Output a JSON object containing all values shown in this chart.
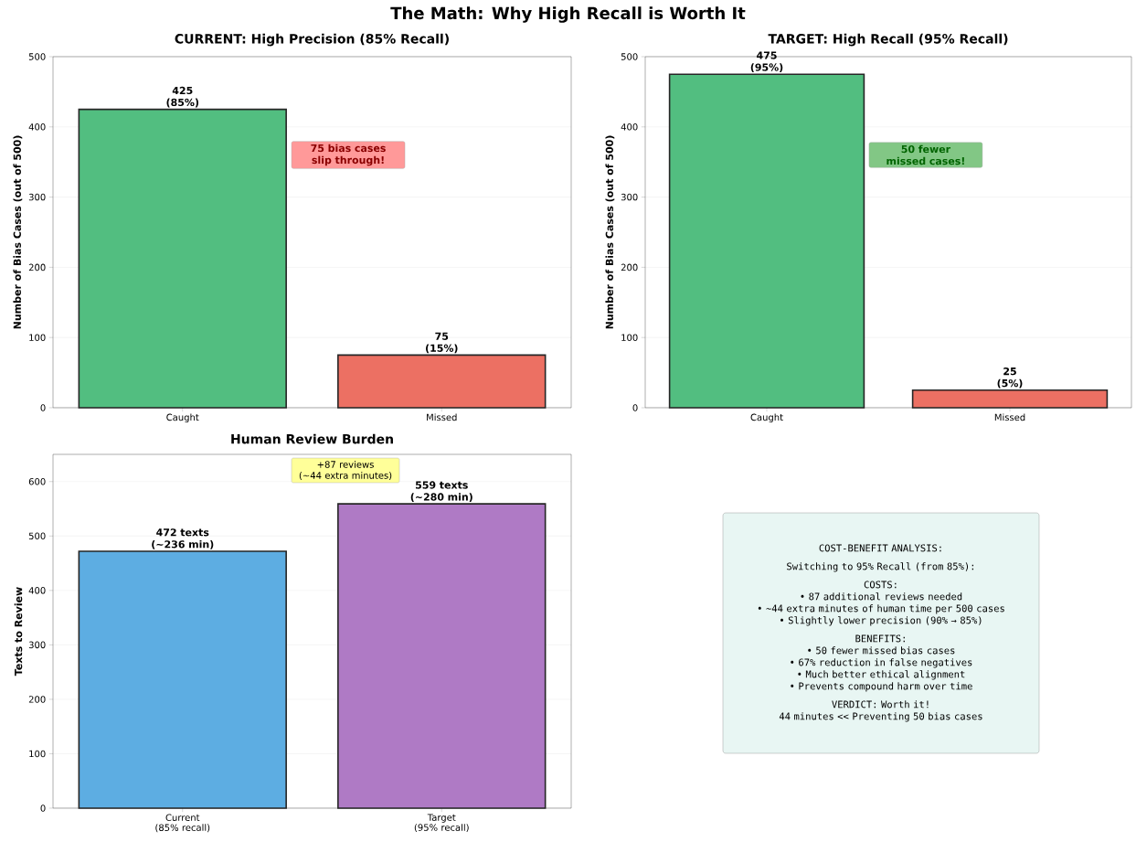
{
  "chart_data": [
    {
      "type": "bar",
      "title": "CURRENT: High Precision (85% Recall)",
      "ylabel": "Number of Bias Cases (out of 500)",
      "categories": [
        "Caught",
        "Missed"
      ],
      "values": [
        425,
        75
      ],
      "colors": [
        "#52be80",
        "#ec7063"
      ],
      "value_labels": [
        "425\n(85%)",
        "75\n(15%)"
      ],
      "ylim": [
        0,
        500
      ],
      "yticks": [
        0,
        100,
        200,
        300,
        400,
        500
      ],
      "grid": "y",
      "annotations": [
        "The Math: Why High Recall is Worth It",
        "75 bias cases\nslip through!"
      ]
    },
    {
      "type": "bar",
      "title": "TARGET: High Recall (95% Recall)",
      "ylabel": "Number of Bias Cases (out of 500)",
      "categories": [
        "Caught",
        "Missed"
      ],
      "values": [
        475,
        25
      ],
      "colors": [
        "#52be80",
        "#ec7063"
      ],
      "value_labels": [
        "475\n(95%)",
        "25\n(5%)"
      ],
      "ylim": [
        0,
        500
      ],
      "yticks": [
        0,
        100,
        200,
        300,
        400,
        500
      ],
      "grid": "y",
      "annotations": [
        "50 fewer\nmissed cases!"
      ]
    },
    {
      "type": "bar",
      "title": "Human Review Burden",
      "ylabel": "Texts to Review",
      "categories": [
        "Current\n(85% recall)",
        "Target\n(95% recall)"
      ],
      "values": [
        472,
        559
      ],
      "colors": [
        "#5dade2",
        "#af7ac5"
      ],
      "value_labels": [
        "472 texts\n(~236 min)",
        "559 texts\n(~280 min)"
      ],
      "ylim": [
        0,
        650
      ],
      "yticks": [
        0,
        100,
        200,
        300,
        400,
        500,
        600
      ],
      "grid": "y",
      "annotations": [
        "+87 reviews\n(~44 extra minutes)"
      ]
    },
    {
      "type": "other",
      "title": "COST-BENEFIT ANALYSIS:",
      "subtitle": "Switching to 95% Recall (from 85%):",
      "annotations": [
        "COSTS:\n• 87 additional reviews needed\n• ~44 extra minutes of human time per 500 cases\n• Slightly lower precision (90% → 85%)",
        "BENEFITS:\n• 50 fewer missed bias cases\n• 67% reduction in false negatives\n• Much better ethical alignment\n• Prevents compound harm over time",
        "VERDICT: Worth it!\n44 minutes << Preventing 50 bias cases"
      ]
    }
  ]
}
